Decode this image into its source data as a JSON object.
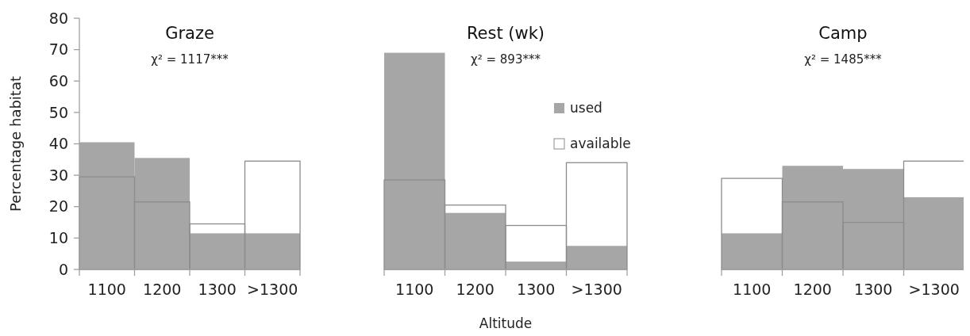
{
  "chart_data": [
    {
      "type": "bar",
      "title": "Graze",
      "ylabel": "Percentage habitat",
      "annotations": [
        "χ² = 1117***"
      ],
      "categories": [
        "1100",
        "1200",
        "1300",
        ">1300"
      ],
      "ylim": [
        0,
        80
      ],
      "yticks": [
        0,
        10,
        20,
        30,
        40,
        50,
        60,
        70,
        80
      ],
      "grid": false,
      "legend": false,
      "series": [
        {
          "color": "#a6a6a6",
          "values": [
            40.5,
            35.5,
            11.5,
            11.5
          ]
        },
        {
          "color": "#8c8c8c",
          "values": [
            29.5,
            21.5,
            14.5,
            34.5
          ]
        }
      ]
    },
    {
      "type": "bar",
      "title": "Rest (wk)",
      "xlabel": "Altitude",
      "annotations": [
        "χ² = 893***"
      ],
      "categories": [
        "1100",
        "1200",
        "1300",
        ">1300"
      ],
      "ylim": [
        0,
        80
      ],
      "tick_labels": "x",
      "grid": false,
      "legend": "top right",
      "series": [
        {
          "name": "used",
          "color": "#a6a6a6",
          "values": [
            69,
            18,
            2.5,
            7.5
          ]
        },
        {
          "name": "available",
          "color": "#8c8c8c",
          "values": [
            28.5,
            20.5,
            14,
            34
          ]
        }
      ]
    },
    {
      "type": "bar",
      "title": "Camp",
      "annotations": [
        "χ² = 1485***"
      ],
      "categories": [
        "1100",
        "1200",
        "1300",
        ">1300"
      ],
      "ylim": [
        0,
        80
      ],
      "tick_labels": "x",
      "grid": false,
      "legend": false,
      "series": [
        {
          "color": "#a6a6a6",
          "values": [
            11.5,
            33,
            32,
            23
          ]
        },
        {
          "color": "#8c8c8c",
          "values": [
            29,
            21.5,
            15,
            34.5
          ]
        }
      ]
    }
  ]
}
